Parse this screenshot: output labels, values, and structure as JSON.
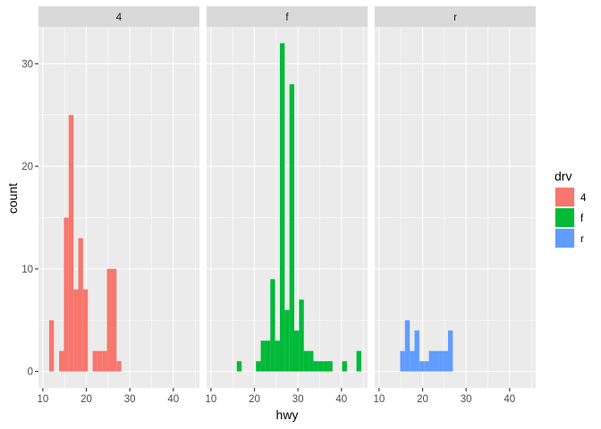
{
  "chart_data": {
    "type": "bar",
    "subtype": "faceted histogram",
    "xlabel": "hwy",
    "ylabel": "count",
    "xlim": [
      9,
      46
    ],
    "ylim": [
      -1.6,
      33.6
    ],
    "x_ticks": [
      10,
      20,
      30,
      40
    ],
    "y_ticks": [
      0,
      10,
      20,
      30
    ],
    "bin_width": 1.1,
    "grid": true,
    "legend": {
      "title": "drv",
      "position": "right"
    },
    "facets": [
      {
        "label": "4",
        "color": "#F8766D",
        "bins": [
          {
            "x": 12.0,
            "count": 5
          },
          {
            "x": 14.3,
            "count": 2
          },
          {
            "x": 15.4,
            "count": 15
          },
          {
            "x": 16.5,
            "count": 25
          },
          {
            "x": 17.6,
            "count": 8
          },
          {
            "x": 18.7,
            "count": 13
          },
          {
            "x": 19.8,
            "count": 8
          },
          {
            "x": 22.0,
            "count": 2
          },
          {
            "x": 23.1,
            "count": 2
          },
          {
            "x": 24.2,
            "count": 2
          },
          {
            "x": 25.3,
            "count": 10
          },
          {
            "x": 26.4,
            "count": 10
          },
          {
            "x": 27.5,
            "count": 1
          }
        ]
      },
      {
        "label": "f",
        "color": "#00BA38",
        "bins": [
          {
            "x": 16.5,
            "count": 1
          },
          {
            "x": 20.9,
            "count": 1
          },
          {
            "x": 22.0,
            "count": 3
          },
          {
            "x": 23.1,
            "count": 3
          },
          {
            "x": 24.2,
            "count": 9
          },
          {
            "x": 25.3,
            "count": 3
          },
          {
            "x": 26.4,
            "count": 32
          },
          {
            "x": 27.5,
            "count": 6
          },
          {
            "x": 28.6,
            "count": 28
          },
          {
            "x": 29.7,
            "count": 4
          },
          {
            "x": 30.8,
            "count": 7
          },
          {
            "x": 31.9,
            "count": 2
          },
          {
            "x": 33.0,
            "count": 2
          },
          {
            "x": 34.1,
            "count": 1
          },
          {
            "x": 35.2,
            "count": 1
          },
          {
            "x": 36.3,
            "count": 1
          },
          {
            "x": 37.4,
            "count": 1
          },
          {
            "x": 40.7,
            "count": 1
          },
          {
            "x": 44.0,
            "count": 2
          }
        ]
      },
      {
        "label": "r",
        "color": "#619CFF",
        "bins": [
          {
            "x": 15.4,
            "count": 2
          },
          {
            "x": 16.5,
            "count": 5
          },
          {
            "x": 17.6,
            "count": 2
          },
          {
            "x": 18.7,
            "count": 4
          },
          {
            "x": 19.8,
            "count": 1
          },
          {
            "x": 20.9,
            "count": 1
          },
          {
            "x": 22.0,
            "count": 2
          },
          {
            "x": 23.1,
            "count": 2
          },
          {
            "x": 24.2,
            "count": 2
          },
          {
            "x": 25.3,
            "count": 2
          },
          {
            "x": 26.4,
            "count": 4
          }
        ]
      }
    ]
  }
}
